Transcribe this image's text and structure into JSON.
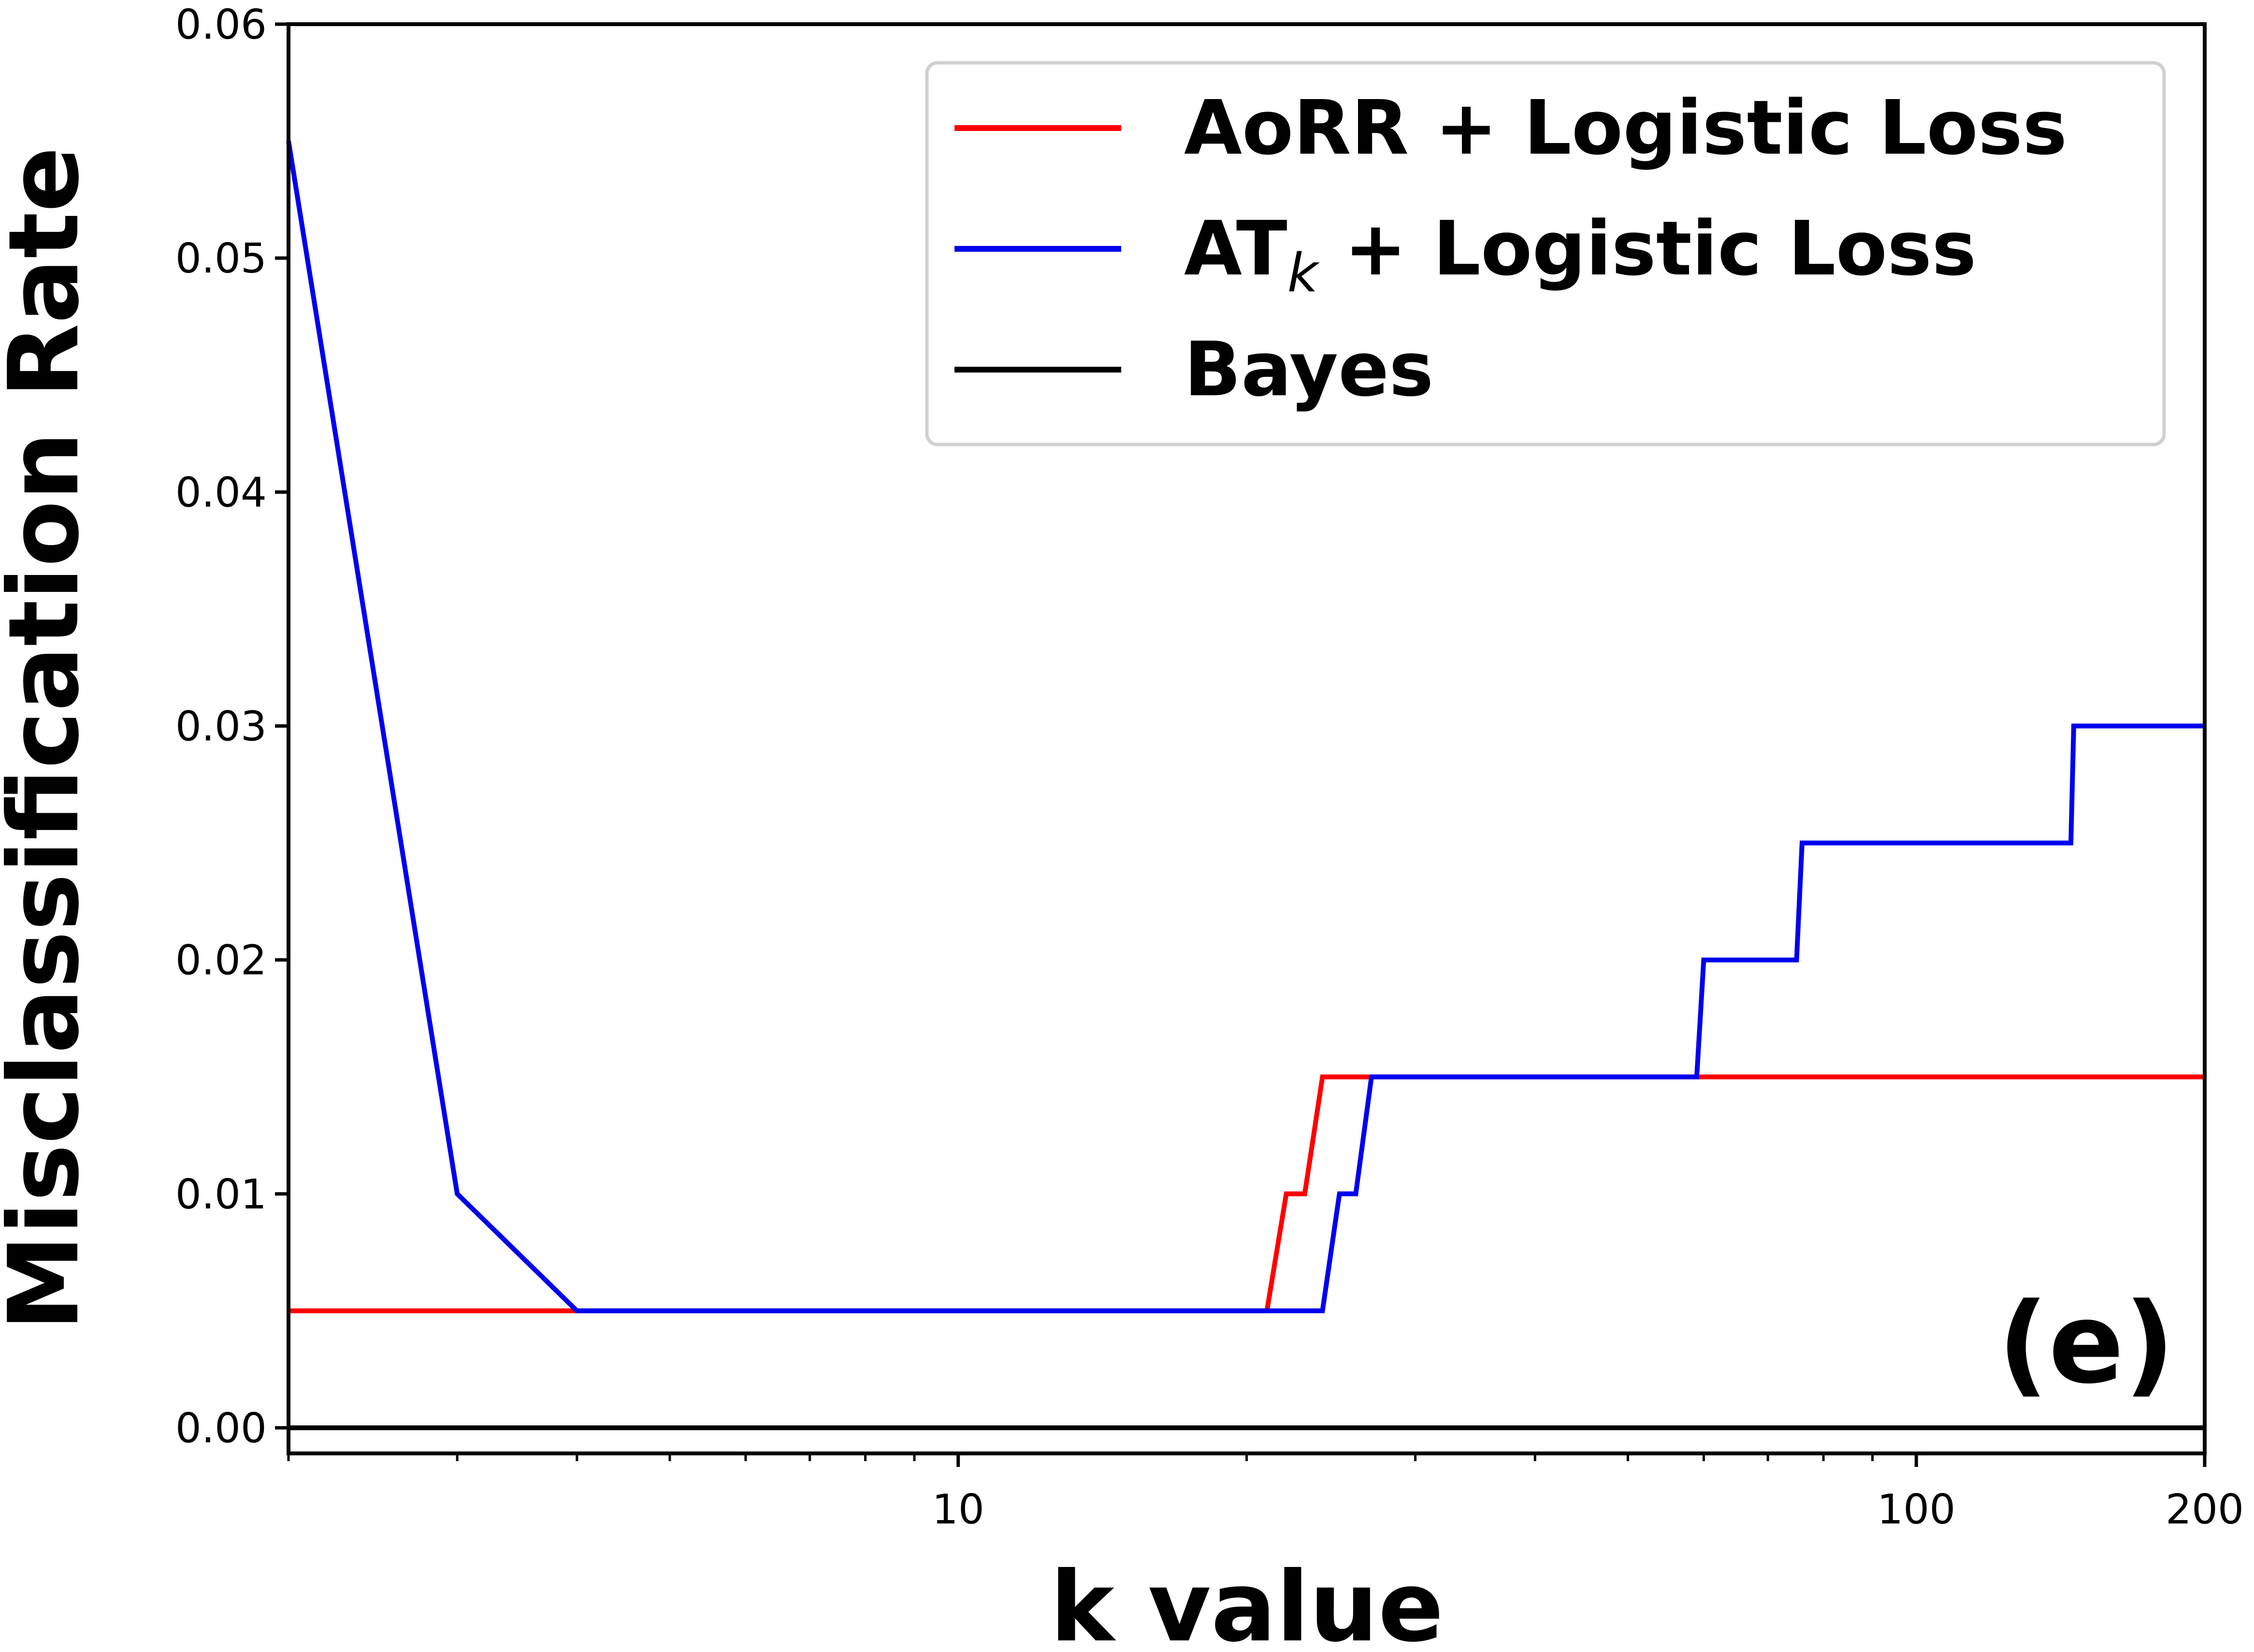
{
  "chart_data": {
    "type": "line",
    "xlabel": "k value",
    "ylabel": "Misclassification Rate",
    "x_scale": "log",
    "xlim": [
      2,
      200
    ],
    "ylim": [
      0,
      0.06
    ],
    "x_ticks": [
      10,
      100,
      200
    ],
    "x_tick_labels": [
      "10",
      "100",
      "200"
    ],
    "y_ticks": [
      0.0,
      0.01,
      0.02,
      0.03,
      0.04,
      0.05,
      0.06
    ],
    "y_tick_labels": [
      "0.00",
      "0.01",
      "0.02",
      "0.03",
      "0.04",
      "0.05",
      "0.06"
    ],
    "grid": false,
    "legend_position": "top-right",
    "panel_label": "(e)",
    "series": [
      {
        "name": "AoRR + Logistic Loss",
        "color": "#ff0000",
        "points": [
          [
            2,
            0.005
          ],
          [
            21,
            0.005
          ],
          [
            22,
            0.01
          ],
          [
            23,
            0.01
          ],
          [
            24,
            0.015
          ],
          [
            200,
            0.015
          ]
        ]
      },
      {
        "name_main": "AT",
        "name_sub": "k",
        "name_rest": " + Logistic Loss",
        "color": "#0000ee",
        "points": [
          [
            2,
            0.055
          ],
          [
            3,
            0.01
          ],
          [
            4,
            0.005
          ],
          [
            24,
            0.005
          ],
          [
            25,
            0.01
          ],
          [
            26,
            0.01
          ],
          [
            27,
            0.015
          ],
          [
            59,
            0.015
          ],
          [
            60,
            0.02
          ],
          [
            75,
            0.02
          ],
          [
            76,
            0.025
          ],
          [
            145,
            0.025
          ],
          [
            146,
            0.03
          ],
          [
            200,
            0.03
          ]
        ]
      },
      {
        "name": "Bayes",
        "color": "#000000",
        "points": [
          [
            2,
            0.0
          ],
          [
            200,
            0.0
          ]
        ]
      }
    ]
  }
}
